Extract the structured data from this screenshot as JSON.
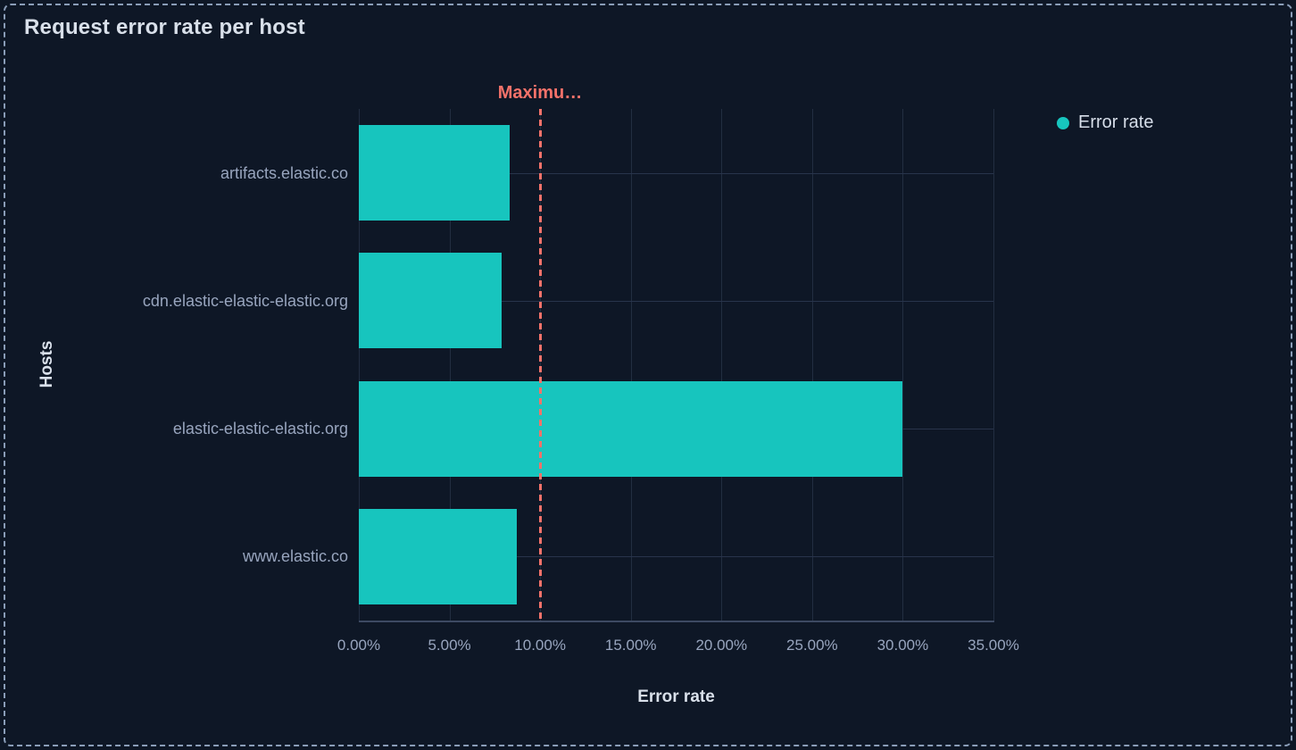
{
  "chart_data": {
    "type": "bar",
    "orientation": "horizontal",
    "title": "Request error rate per host",
    "xlabel": "Error rate",
    "ylabel": "Hosts",
    "categories": [
      "artifacts.elastic.co",
      "cdn.elastic-elastic-elastic.org",
      "elastic-elastic-elastic.org",
      "www.elastic.co"
    ],
    "series": [
      {
        "name": "Error rate",
        "values": [
          8.3,
          7.9,
          30.0,
          8.7
        ]
      }
    ],
    "value_unit": "%",
    "xlim": [
      0,
      35
    ],
    "x_ticks": [
      {
        "value": 0,
        "label": "0.00%"
      },
      {
        "value": 5,
        "label": "5.00%"
      },
      {
        "value": 10,
        "label": "10.00%"
      },
      {
        "value": 15,
        "label": "15.00%"
      },
      {
        "value": 20,
        "label": "20.00%"
      },
      {
        "value": 25,
        "label": "25.00%"
      },
      {
        "value": 30,
        "label": "30.00%"
      },
      {
        "value": 35,
        "label": "35.00%"
      }
    ],
    "grid": true,
    "legend": {
      "position": "top-right",
      "items": [
        {
          "label": "Error rate",
          "color": "#17C5BE"
        }
      ]
    },
    "threshold": {
      "value": 10,
      "label": "Maximu…",
      "color": "#F6726A",
      "style": "dashed"
    }
  },
  "colors": {
    "background": "#0E1726",
    "panel_border": "#8A9DB8",
    "bar": "#17C5BE",
    "threshold": "#F6726A",
    "title_text": "#D9E0EA",
    "axis_label_text": "#98A5BE"
  }
}
